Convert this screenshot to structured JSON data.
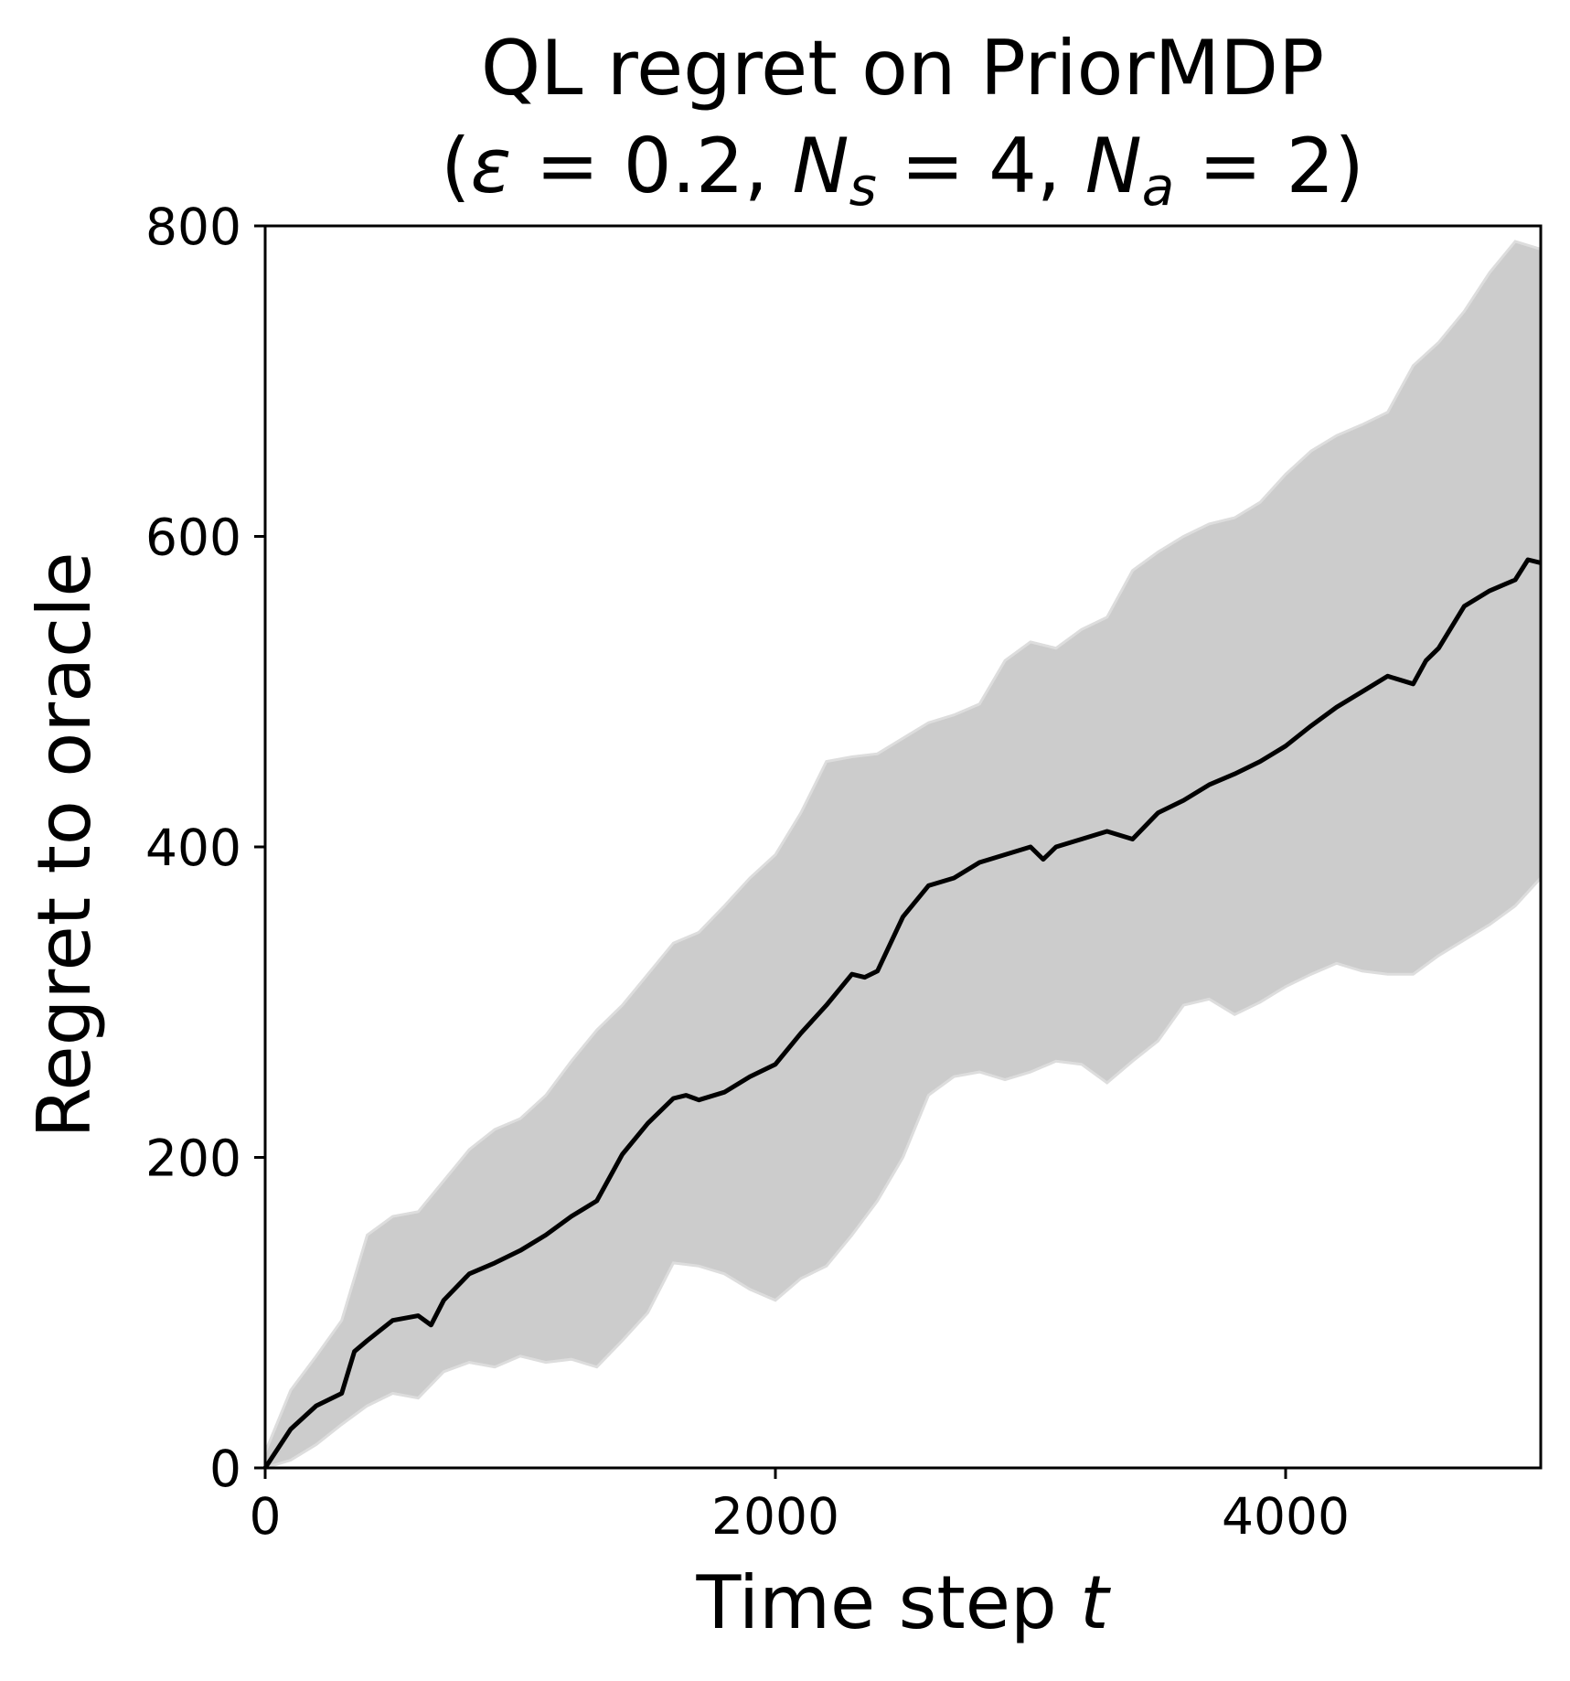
{
  "chart_data": {
    "type": "line",
    "title_line1": "QL regret on PriorMDP",
    "title_line2_parts": [
      {
        "text": "(",
        "style": "normal"
      },
      {
        "text": "ε",
        "style": "italic"
      },
      {
        "text": " = 0.2, ",
        "style": "normal"
      },
      {
        "text": "N",
        "style": "italic"
      },
      {
        "text": "s",
        "style": "italic-sub"
      },
      {
        "text": " = 4, ",
        "style": "normal"
      },
      {
        "text": "N",
        "style": "italic"
      },
      {
        "text": "a",
        "style": "italic-sub"
      },
      {
        "text": " = 2)",
        "style": "normal"
      }
    ],
    "xlabel_parts": [
      {
        "text": "Time step ",
        "style": "normal"
      },
      {
        "text": "t",
        "style": "italic"
      }
    ],
    "ylabel": "Regret to oracle",
    "xlim": [
      0,
      5000
    ],
    "ylim": [
      0,
      800
    ],
    "xticks": [
      0,
      2000,
      4000
    ],
    "yticks": [
      0,
      200,
      400,
      600,
      800
    ],
    "grid": false,
    "legend": "none",
    "colors": {
      "mean_line": "#000000",
      "band_fill": "#cccccc",
      "band_edge": "#dddddd"
    },
    "series": [
      {
        "role": "mean",
        "x": [
          0,
          100,
          200,
          300,
          350,
          400,
          500,
          600,
          650,
          700,
          800,
          900,
          1000,
          1100,
          1200,
          1300,
          1400,
          1500,
          1600,
          1650,
          1700,
          1800,
          1900,
          2000,
          2100,
          2200,
          2300,
          2350,
          2400,
          2500,
          2600,
          2700,
          2800,
          2900,
          3000,
          3050,
          3100,
          3200,
          3300,
          3400,
          3500,
          3600,
          3700,
          3800,
          3900,
          4000,
          4100,
          4200,
          4300,
          4400,
          4500,
          4550,
          4600,
          4700,
          4800,
          4900,
          4950,
          5000
        ],
        "y": [
          0,
          25,
          40,
          48,
          75,
          82,
          95,
          98,
          92,
          108,
          125,
          132,
          140,
          150,
          162,
          172,
          202,
          222,
          238,
          240,
          237,
          242,
          252,
          260,
          280,
          298,
          318,
          316,
          320,
          355,
          375,
          380,
          390,
          395,
          400,
          392,
          400,
          405,
          410,
          405,
          422,
          430,
          440,
          447,
          455,
          465,
          478,
          490,
          500,
          510,
          505,
          520,
          528,
          555,
          565,
          572,
          585,
          583
        ]
      },
      {
        "role": "upper",
        "x": [
          0,
          100,
          200,
          300,
          400,
          500,
          600,
          700,
          800,
          900,
          1000,
          1100,
          1200,
          1300,
          1400,
          1500,
          1600,
          1700,
          1800,
          1900,
          2000,
          2100,
          2200,
          2300,
          2400,
          2500,
          2600,
          2700,
          2800,
          2900,
          3000,
          3100,
          3200,
          3300,
          3400,
          3500,
          3600,
          3700,
          3800,
          3900,
          4000,
          4100,
          4200,
          4300,
          4400,
          4500,
          4600,
          4700,
          4800,
          4900,
          5000
        ],
        "y": [
          10,
          50,
          72,
          95,
          150,
          162,
          165,
          185,
          205,
          218,
          225,
          240,
          262,
          282,
          298,
          318,
          338,
          345,
          362,
          380,
          395,
          422,
          455,
          458,
          460,
          470,
          480,
          485,
          492,
          520,
          532,
          528,
          540,
          548,
          578,
          590,
          600,
          608,
          612,
          622,
          640,
          655,
          665,
          672,
          680,
          710,
          725,
          745,
          770,
          790,
          785
        ]
      },
      {
        "role": "lower",
        "x": [
          0,
          100,
          200,
          300,
          400,
          500,
          600,
          700,
          800,
          900,
          1000,
          1100,
          1200,
          1300,
          1400,
          1500,
          1600,
          1700,
          1800,
          1900,
          2000,
          2100,
          2200,
          2300,
          2400,
          2500,
          2600,
          2700,
          2800,
          2900,
          3000,
          3100,
          3200,
          3300,
          3400,
          3500,
          3600,
          3700,
          3800,
          3900,
          4000,
          4100,
          4200,
          4300,
          4400,
          4500,
          4600,
          4700,
          4800,
          4900,
          5000
        ],
        "y": [
          0,
          5,
          15,
          28,
          40,
          48,
          45,
          62,
          68,
          65,
          72,
          68,
          70,
          65,
          82,
          100,
          132,
          130,
          125,
          115,
          108,
          122,
          130,
          150,
          172,
          200,
          240,
          252,
          255,
          250,
          255,
          262,
          260,
          248,
          262,
          275,
          298,
          302,
          292,
          300,
          310,
          318,
          325,
          320,
          318,
          318,
          330,
          340,
          350,
          362,
          380
        ]
      }
    ]
  }
}
